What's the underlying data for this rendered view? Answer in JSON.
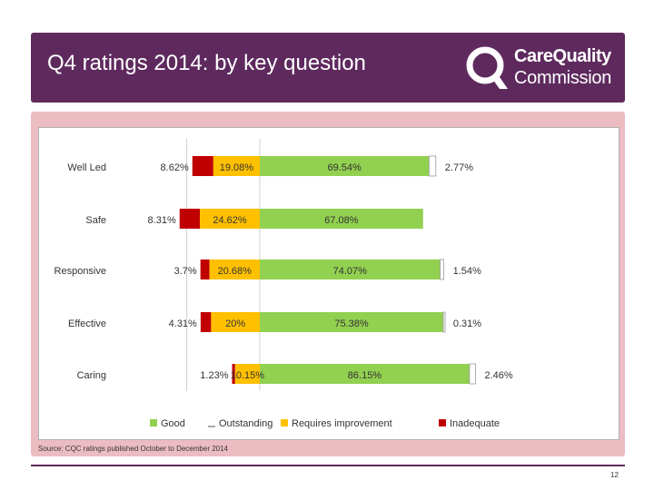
{
  "slide": {
    "title": "Q4 ratings 2014: by key question",
    "logo_line1": "CareQuality",
    "logo_line2": "Commission",
    "source": "Source: CQC ratings published October to December 2014",
    "page_number": "12"
  },
  "colors": {
    "header_bg": "#5e2a5e",
    "band_bg": "#ecbcc3",
    "good": "#92d050",
    "outstanding": "#ffffff",
    "requires_improvement": "#ffc000",
    "inadequate": "#c00000"
  },
  "chart_data": {
    "type": "bar",
    "orientation": "horizontal-stacked",
    "categories": [
      "Well Led",
      "Safe",
      "Responsive",
      "Effective",
      "Caring"
    ],
    "series": [
      {
        "name": "Inadequate",
        "color": "#c00000",
        "values": [
          8.62,
          8.31,
          3.7,
          4.31,
          1.23
        ],
        "labels": [
          "8.62%",
          "8.31%",
          "3.7%",
          "4.31%",
          "1.23%"
        ]
      },
      {
        "name": "Requires improvement",
        "color": "#ffc000",
        "values": [
          19.08,
          24.62,
          20.68,
          20,
          10.15
        ],
        "labels": [
          "19.08%",
          "24.62%",
          "20.68%",
          "20%",
          "10.15%"
        ]
      },
      {
        "name": "Good",
        "color": "#92d050",
        "values": [
          69.54,
          67.08,
          74.07,
          75.38,
          86.15
        ],
        "labels": [
          "69.54%",
          "67.08%",
          "74.07%",
          "75.38%",
          "86.15%"
        ]
      },
      {
        "name": "Outstanding",
        "color": "#ffffff",
        "values": [
          2.77,
          0,
          1.54,
          0.31,
          2.46
        ],
        "labels": [
          "2.77%",
          "",
          "1.54%",
          "0.31%",
          "2.46%"
        ]
      }
    ],
    "legend": [
      "Good",
      "Outstanding",
      "Requires improvement",
      "Inadequate"
    ],
    "legend_position": "bottom",
    "xlim": [
      -40,
      110
    ]
  }
}
